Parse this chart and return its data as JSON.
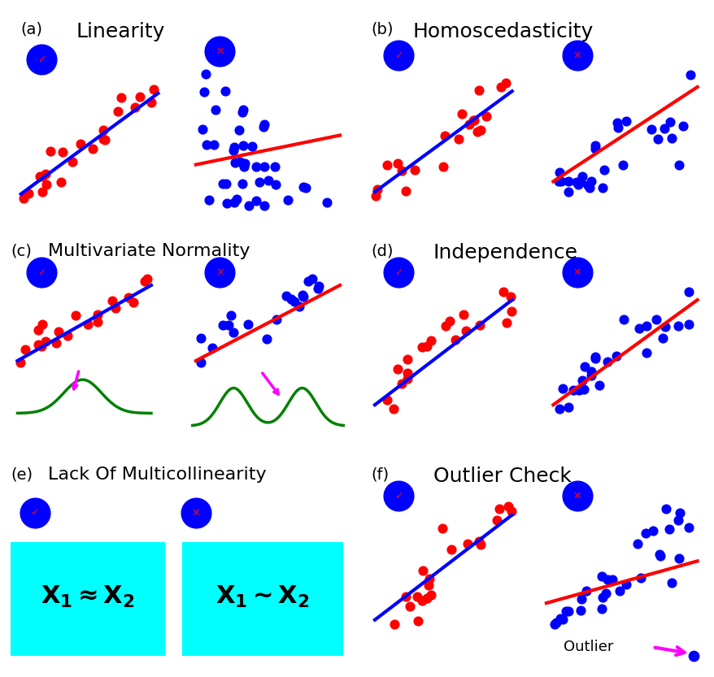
{
  "dot_color_good": "#FF0000",
  "dot_color_bad": "#0000FF",
  "line_color_good": "#0000FF",
  "line_color_bad": "#FF0000",
  "circle_bg": "#0000FF",
  "check_color": "#FF0000",
  "arrow_color": "#FF00FF",
  "gauss_color": "#008000",
  "box_color": "#00FFFF",
  "box_text_color": "#000000",
  "background": "#FFFFFF",
  "panel_titles": [
    "Linearity",
    "Homoscedasticity",
    "Multivariate Normality",
    "Independence",
    "Lack Of Multicollinearity",
    "Outlier Check"
  ],
  "panel_labels": [
    "(a)",
    "(b)",
    "(c)",
    "(d)",
    "(e)",
    "(f)"
  ]
}
